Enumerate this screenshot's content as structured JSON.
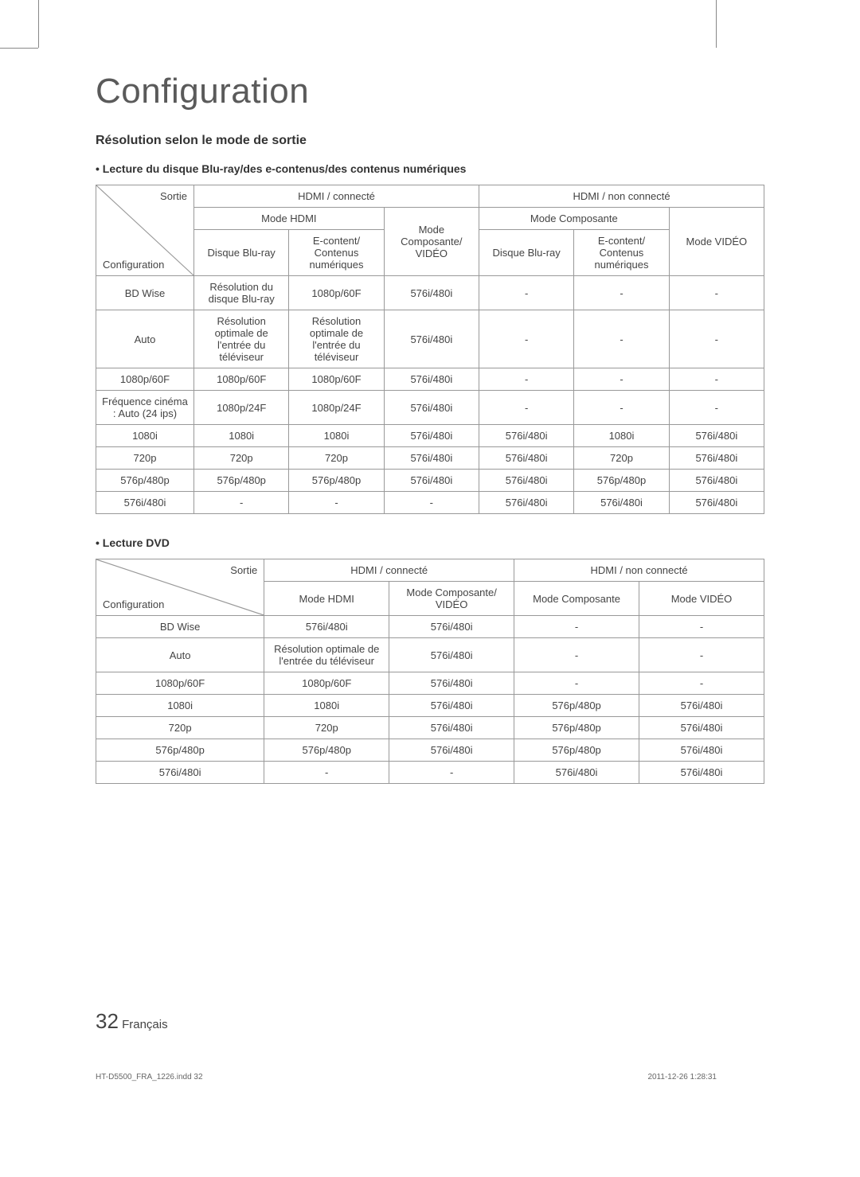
{
  "page_title": "Configuration",
  "section_heading": "Résolution selon le mode de sortie",
  "subsection1": "• Lecture du disque Blu-ray/des e-contenus/des contenus numériques",
  "subsection2": "• Lecture DVD",
  "diag_top": "Sortie",
  "diag_bottom": "Configuration",
  "table1": {
    "hdmi_conn": "HDMI / connecté",
    "hdmi_nonconn": "HDMI / non connecté",
    "mode_hdmi": "Mode HDMI",
    "mode_comp_video": "Mode Composante/ VIDÉO",
    "mode_comp": "Mode Composante",
    "mode_video": "Mode VIDÉO",
    "disque_br": "Disque Blu-ray",
    "econtent": "E-content/ Contenus numériques",
    "rows": [
      {
        "label": "BD Wise",
        "c1": "Résolution du disque Blu-ray",
        "c2": "1080p/60F",
        "c3": "576i/480i",
        "c4": "-",
        "c5": "-",
        "c6": "-"
      },
      {
        "label": "Auto",
        "c1": "Résolution optimale de l'entrée du téléviseur",
        "c2": "Résolution optimale de l'entrée du téléviseur",
        "c3": "576i/480i",
        "c4": "-",
        "c5": "-",
        "c6": "-"
      },
      {
        "label": "1080p/60F",
        "c1": "1080p/60F",
        "c2": "1080p/60F",
        "c3": "576i/480i",
        "c4": "-",
        "c5": "-",
        "c6": "-"
      },
      {
        "label": "Fréquence cinéma : Auto (24 ips)",
        "c1": "1080p/24F",
        "c2": "1080p/24F",
        "c3": "576i/480i",
        "c4": "-",
        "c5": "-",
        "c6": "-"
      },
      {
        "label": "1080i",
        "c1": "1080i",
        "c2": "1080i",
        "c3": "576i/480i",
        "c4": "576i/480i",
        "c5": "1080i",
        "c6": "576i/480i"
      },
      {
        "label": "720p",
        "c1": "720p",
        "c2": "720p",
        "c3": "576i/480i",
        "c4": "576i/480i",
        "c5": "720p",
        "c6": "576i/480i"
      },
      {
        "label": "576p/480p",
        "c1": "576p/480p",
        "c2": "576p/480p",
        "c3": "576i/480i",
        "c4": "576i/480i",
        "c5": "576p/480p",
        "c6": "576i/480i"
      },
      {
        "label": "576i/480i",
        "c1": "-",
        "c2": "-",
        "c3": "-",
        "c4": "576i/480i",
        "c5": "576i/480i",
        "c6": "576i/480i"
      }
    ]
  },
  "table2": {
    "hdmi_conn": "HDMI / connecté",
    "hdmi_nonconn": "HDMI / non connecté",
    "mode_hdmi": "Mode HDMI",
    "mode_comp_video": "Mode Composante/ VIDÉO",
    "mode_comp": "Mode Composante",
    "mode_video": "Mode VIDÉO",
    "rows": [
      {
        "label": "BD Wise",
        "c1": "576i/480i",
        "c2": "576i/480i",
        "c3": "-",
        "c4": "-"
      },
      {
        "label": "Auto",
        "c1": "Résolution optimale de l'entrée du téléviseur",
        "c2": "576i/480i",
        "c3": "-",
        "c4": "-"
      },
      {
        "label": "1080p/60F",
        "c1": "1080p/60F",
        "c2": "576i/480i",
        "c3": "-",
        "c4": "-"
      },
      {
        "label": "1080i",
        "c1": "1080i",
        "c2": "576i/480i",
        "c3": "576p/480p",
        "c4": "576i/480i"
      },
      {
        "label": "720p",
        "c1": "720p",
        "c2": "576i/480i",
        "c3": "576p/480p",
        "c4": "576i/480i"
      },
      {
        "label": "576p/480p",
        "c1": "576p/480p",
        "c2": "576i/480i",
        "c3": "576p/480p",
        "c4": "576i/480i"
      },
      {
        "label": "576i/480i",
        "c1": "-",
        "c2": "-",
        "c3": "576i/480i",
        "c4": "576i/480i"
      }
    ]
  },
  "page_num": "32",
  "page_lang": "Français",
  "footer_left": "HT-D5500_FRA_1226.indd   32",
  "footer_right": "2011-12-26   1:28:31"
}
